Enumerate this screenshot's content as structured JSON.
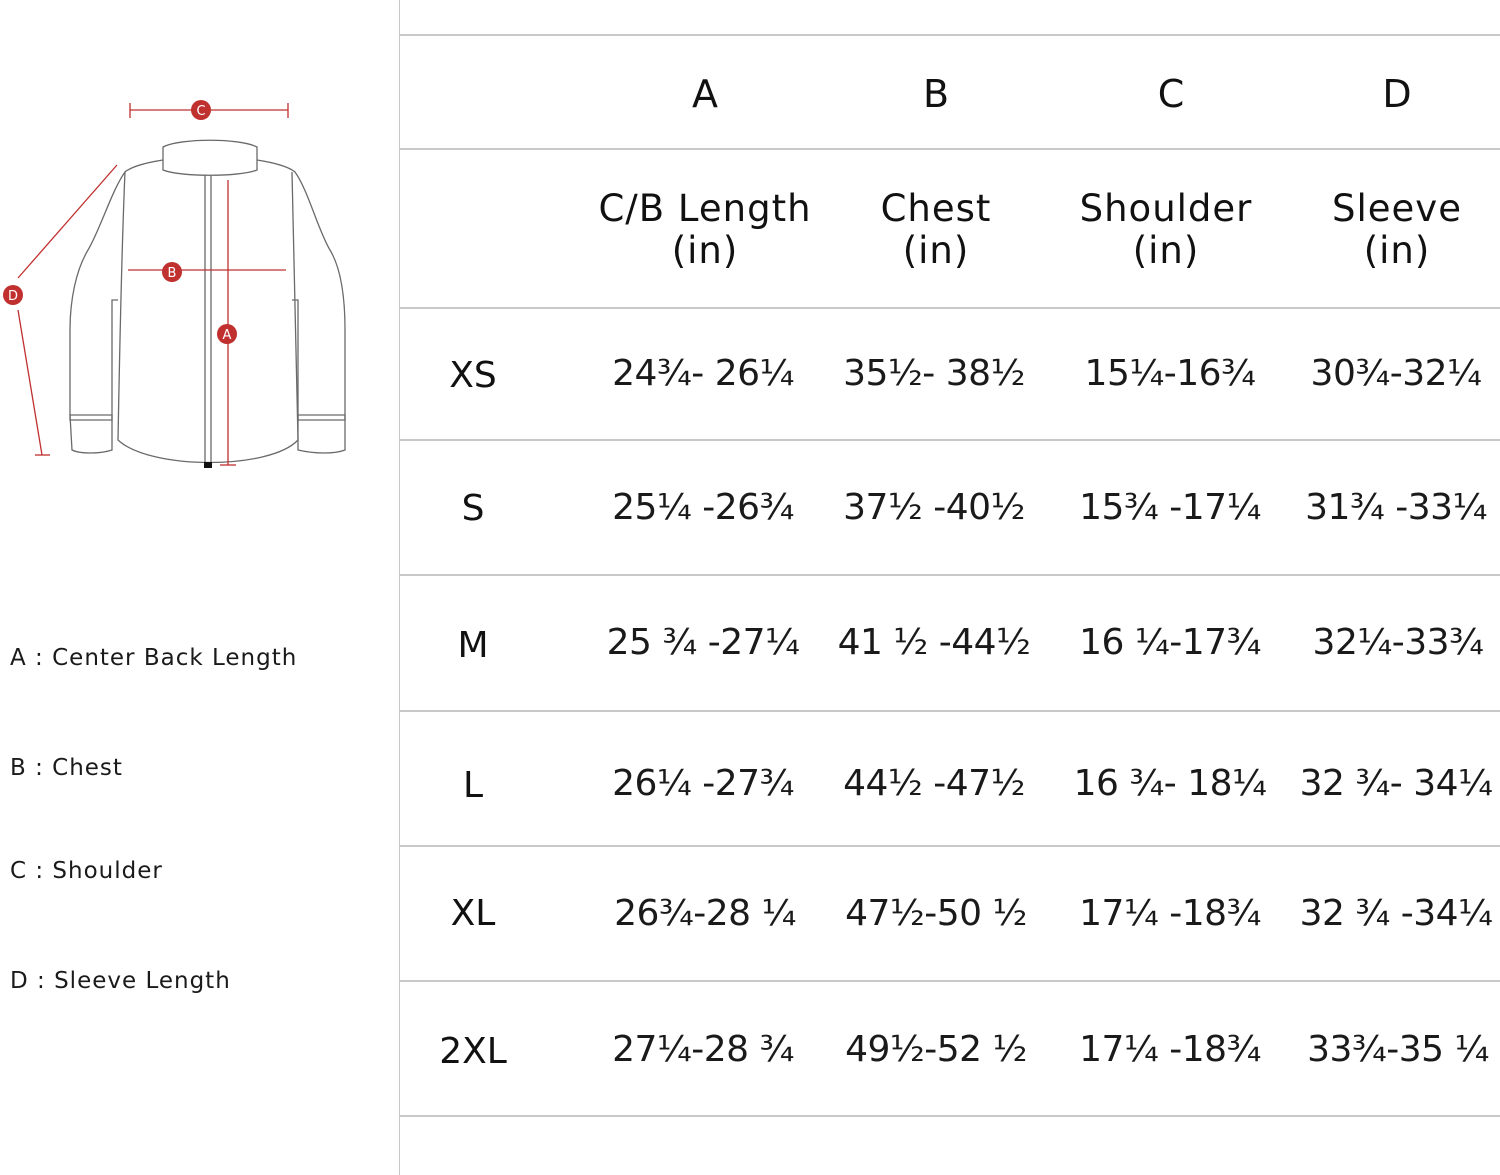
{
  "diagram": {
    "markers": [
      "C",
      "B",
      "A",
      "D"
    ]
  },
  "legend": [
    {
      "text": "A : Center Back Length"
    },
    {
      "text": "B : Chest"
    },
    {
      "text": "C : Shoulder"
    },
    {
      "text": "D : Sleeve Length"
    }
  ],
  "table": {
    "letters": [
      "A",
      "B",
      "C",
      "D"
    ],
    "headers": [
      {
        "line1": "C/B Length",
        "line2": "(in)"
      },
      {
        "line1": "Chest",
        "line2": "(in)"
      },
      {
        "line1": "Shoulder",
        "line2": "(in)"
      },
      {
        "line1": "Sleeve",
        "line2": "(in)"
      }
    ],
    "rows": [
      {
        "size": "XS",
        "cells": [
          "24¾- 26¼",
          "35½- 38½",
          "15¼-16¾",
          "30¾-32¼"
        ]
      },
      {
        "size": "S",
        "cells": [
          "25¼ -26¾",
          "37½ -40½",
          "15¾ -17¼",
          "31¾ -33¼"
        ]
      },
      {
        "size": "M",
        "cells": [
          "25 ¾ -27¼",
          "41 ½ -44½",
          "16 ¼-17¾",
          "32¼-33¾"
        ]
      },
      {
        "size": "L",
        "cells": [
          "26¼ -27¾",
          "44½ -47½",
          "16 ¾- 18¼",
          "32 ¾- 34¼"
        ]
      },
      {
        "size": "XL",
        "cells": [
          "26¾-28 ¼",
          "47½-50 ½",
          "17¼ -18¾",
          "32 ¾ -34¼"
        ]
      },
      {
        "size": "2XL",
        "cells": [
          "27¼-28 ¾",
          "49½-52 ½",
          "17¼ -18¾",
          "33¾-35 ¼"
        ]
      }
    ]
  }
}
